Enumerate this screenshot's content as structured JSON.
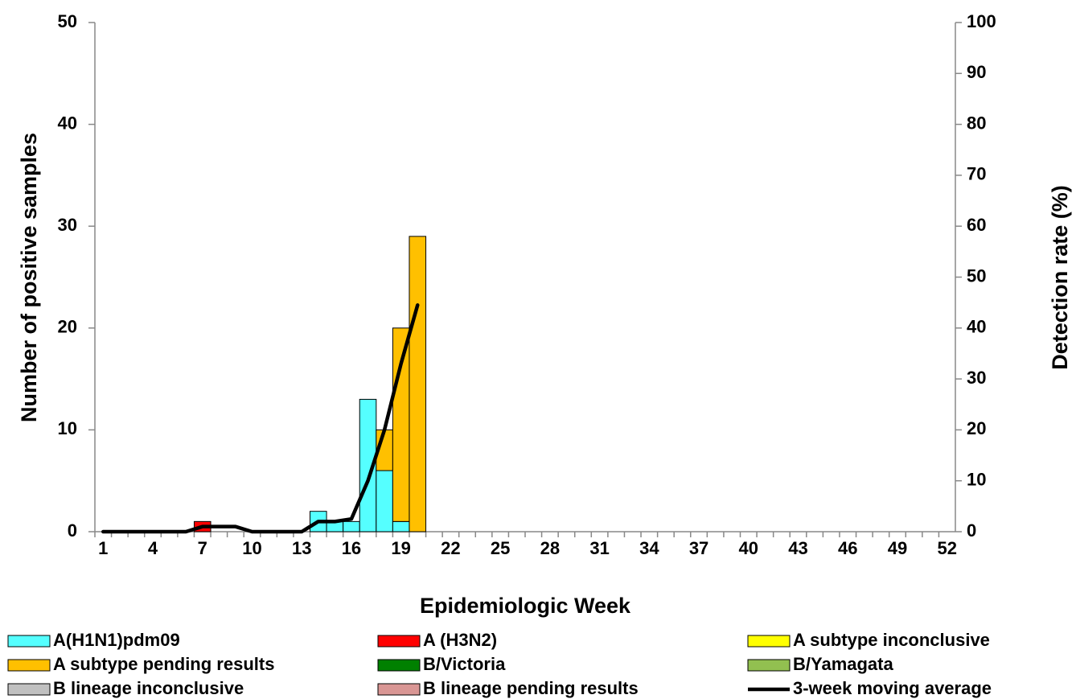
{
  "chart_data": {
    "type": "bar",
    "x_label": "Epidemiologic Week",
    "y_label": "Number of positive samples",
    "y2_label": "Detection rate (%)",
    "stacked": true,
    "categories": [
      "1",
      null,
      null,
      "4",
      null,
      null,
      "7",
      null,
      null,
      "10",
      null,
      null,
      "13",
      null,
      null,
      "16",
      null,
      null,
      "19",
      null,
      null,
      "22",
      null,
      null,
      "25",
      null,
      null,
      "28",
      null,
      null,
      "31",
      null,
      null,
      "34",
      null,
      null,
      "37",
      null,
      null,
      "40",
      null,
      null,
      "43",
      null,
      null,
      "46",
      null,
      null,
      "49",
      null,
      null,
      "52"
    ],
    "ylim": [
      0,
      50
    ],
    "yticks": [
      0,
      10,
      20,
      30,
      40,
      50
    ],
    "y2lim": [
      0,
      100
    ],
    "y2ticks": [
      0,
      10,
      20,
      30,
      40,
      50,
      60,
      70,
      80,
      90,
      100
    ],
    "series": [
      {
        "name": "A(H1N1)pdm09",
        "color": "#55ffff",
        "values": [
          0,
          0,
          0,
          0,
          0,
          0,
          0,
          0,
          0,
          0,
          0,
          0,
          0,
          2,
          1,
          1,
          13,
          6,
          1,
          0,
          0,
          0,
          0,
          0,
          0,
          0,
          0,
          0,
          0,
          0,
          0,
          0,
          0,
          0,
          0,
          0,
          0,
          0,
          0,
          0,
          0,
          0,
          0,
          0,
          0,
          0,
          0,
          0,
          0,
          0,
          0,
          0
        ]
      },
      {
        "name": "A (H3N2)",
        "color": "#ff0000",
        "values": [
          0,
          0,
          0,
          0,
          0,
          0,
          1,
          0,
          0,
          0,
          0,
          0,
          0,
          0,
          0,
          0,
          0,
          0,
          0,
          0,
          0,
          0,
          0,
          0,
          0,
          0,
          0,
          0,
          0,
          0,
          0,
          0,
          0,
          0,
          0,
          0,
          0,
          0,
          0,
          0,
          0,
          0,
          0,
          0,
          0,
          0,
          0,
          0,
          0,
          0,
          0,
          0
        ]
      },
      {
        "name": "A subtype inconclusive",
        "color": "#ffff00",
        "values": [
          0,
          0,
          0,
          0,
          0,
          0,
          0,
          0,
          0,
          0,
          0,
          0,
          0,
          0,
          0,
          0,
          0,
          0,
          0,
          0,
          0,
          0,
          0,
          0,
          0,
          0,
          0,
          0,
          0,
          0,
          0,
          0,
          0,
          0,
          0,
          0,
          0,
          0,
          0,
          0,
          0,
          0,
          0,
          0,
          0,
          0,
          0,
          0,
          0,
          0,
          0,
          0
        ]
      },
      {
        "name": "A subtype pending results",
        "color": "#ffc000",
        "values": [
          0,
          0,
          0,
          0,
          0,
          0,
          0,
          0,
          0,
          0,
          0,
          0,
          0,
          0,
          0,
          0,
          0,
          4,
          19,
          29,
          0,
          0,
          0,
          0,
          0,
          0,
          0,
          0,
          0,
          0,
          0,
          0,
          0,
          0,
          0,
          0,
          0,
          0,
          0,
          0,
          0,
          0,
          0,
          0,
          0,
          0,
          0,
          0,
          0,
          0,
          0,
          0
        ]
      },
      {
        "name": "B/Victoria",
        "color": "#008000",
        "values": [
          0,
          0,
          0,
          0,
          0,
          0,
          0,
          0,
          0,
          0,
          0,
          0,
          0,
          0,
          0,
          0,
          0,
          0,
          0,
          0,
          0,
          0,
          0,
          0,
          0,
          0,
          0,
          0,
          0,
          0,
          0,
          0,
          0,
          0,
          0,
          0,
          0,
          0,
          0,
          0,
          0,
          0,
          0,
          0,
          0,
          0,
          0,
          0,
          0,
          0,
          0,
          0
        ]
      },
      {
        "name": "B/Yamagata",
        "color": "#92c050",
        "values": [
          0,
          0,
          0,
          0,
          0,
          0,
          0,
          0,
          0,
          0,
          0,
          0,
          0,
          0,
          0,
          0,
          0,
          0,
          0,
          0,
          0,
          0,
          0,
          0,
          0,
          0,
          0,
          0,
          0,
          0,
          0,
          0,
          0,
          0,
          0,
          0,
          0,
          0,
          0,
          0,
          0,
          0,
          0,
          0,
          0,
          0,
          0,
          0,
          0,
          0,
          0,
          0
        ]
      },
      {
        "name": "B lineage inconclusive",
        "color": "#c0c0c0",
        "values": [
          0,
          0,
          0,
          0,
          0,
          0,
          0,
          0,
          0,
          0,
          0,
          0,
          0,
          0,
          0,
          0,
          0,
          0,
          0,
          0,
          0,
          0,
          0,
          0,
          0,
          0,
          0,
          0,
          0,
          0,
          0,
          0,
          0,
          0,
          0,
          0,
          0,
          0,
          0,
          0,
          0,
          0,
          0,
          0,
          0,
          0,
          0,
          0,
          0,
          0,
          0,
          0
        ]
      },
      {
        "name": "B lineage pending results",
        "color": "#d99694",
        "values": [
          0,
          0,
          0,
          0,
          0,
          0,
          0,
          0,
          0,
          0,
          0,
          0,
          0,
          0,
          0,
          0,
          0,
          0,
          0,
          0,
          0,
          0,
          0,
          0,
          0,
          0,
          0,
          0,
          0,
          0,
          0,
          0,
          0,
          0,
          0,
          0,
          0,
          0,
          0,
          0,
          0,
          0,
          0,
          0,
          0,
          0,
          0,
          0,
          0,
          0,
          0,
          0
        ]
      },
      {
        "name": "3-week moving average",
        "color": "#000000",
        "type": "line",
        "axis": "y2",
        "values": [
          0,
          0,
          0,
          0,
          0,
          0,
          1,
          1,
          1,
          0,
          0,
          0,
          0,
          2,
          2,
          2.5,
          10,
          20,
          33,
          44.5,
          null,
          null,
          null,
          null,
          null,
          null,
          null,
          null,
          null,
          null,
          null,
          null,
          null,
          null,
          null,
          null,
          null,
          null,
          null,
          null,
          null,
          null,
          null,
          null,
          null,
          null,
          null,
          null,
          null,
          null,
          null,
          null
        ]
      }
    ]
  }
}
